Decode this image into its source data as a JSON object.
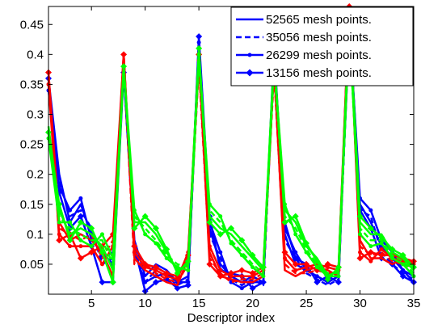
{
  "chart_data": {
    "type": "line",
    "title": "",
    "xlabel": "Descriptor index",
    "ylabel": "",
    "xlim": [
      1,
      35
    ],
    "ylim": [
      0,
      0.48
    ],
    "grid": false,
    "legend_position": "top-right",
    "x_ticks": [
      5,
      10,
      15,
      20,
      25,
      30,
      35
    ],
    "x_tick_labels": [
      "5",
      "10",
      "15",
      "20",
      "25",
      "30",
      "35"
    ],
    "y_ticks": [
      0.05,
      0.1,
      0.15,
      0.2,
      0.25,
      0.3,
      0.35,
      0.4,
      0.45
    ],
    "y_tick_labels": [
      "0.05",
      "0.1",
      "0.15",
      "0.2",
      "0.25",
      "0.3",
      "0.35",
      "0.4",
      "0.45"
    ],
    "colors": {
      "blue": "#0000ff",
      "red": "#ff0000",
      "green": "#00ff00"
    },
    "legend": [
      {
        "label": "52565 mesh points.",
        "style": "solid"
      },
      {
        "label": "35056 mesh points.",
        "style": "dashed"
      },
      {
        "label": "26299 mesh points.",
        "style": "dot-marker"
      },
      {
        "label": "13156 mesh points.",
        "style": "diamond-marker"
      }
    ],
    "x": [
      1,
      2,
      3,
      4,
      5,
      6,
      7,
      8,
      9,
      10,
      11,
      12,
      13,
      14,
      15,
      16,
      17,
      18,
      19,
      20,
      21,
      22,
      23,
      24,
      25,
      26,
      27,
      28,
      29,
      30,
      31,
      32,
      33,
      34,
      35
    ],
    "series": [
      {
        "color": "blue",
        "style": "solid",
        "values": [
          0.36,
          0.2,
          0.12,
          0.15,
          0.1,
          0.06,
          0.07,
          0.38,
          0.09,
          0.03,
          0.05,
          0.04,
          0.02,
          0.03,
          0.42,
          0.11,
          0.05,
          0.03,
          0.02,
          0.03,
          0.02,
          0.4,
          0.1,
          0.05,
          0.04,
          0.03,
          0.02,
          0.03,
          0.45,
          0.15,
          0.12,
          0.08,
          0.06,
          0.04,
          0.03
        ]
      },
      {
        "color": "blue",
        "style": "dashed",
        "values": [
          0.35,
          0.19,
          0.13,
          0.14,
          0.11,
          0.05,
          0.06,
          0.37,
          0.08,
          0.02,
          0.04,
          0.03,
          0.015,
          0.025,
          0.41,
          0.1,
          0.06,
          0.025,
          0.015,
          0.025,
          0.015,
          0.39,
          0.09,
          0.06,
          0.035,
          0.025,
          0.015,
          0.025,
          0.44,
          0.14,
          0.13,
          0.07,
          0.05,
          0.035,
          0.025
        ]
      },
      {
        "color": "blue",
        "style": "dot",
        "values": [
          0.34,
          0.18,
          0.14,
          0.16,
          0.09,
          0.07,
          0.05,
          0.38,
          0.07,
          0.02,
          0.03,
          0.035,
          0.02,
          0.02,
          0.42,
          0.12,
          0.07,
          0.02,
          0.01,
          0.02,
          0.02,
          0.41,
          0.11,
          0.07,
          0.04,
          0.03,
          0.02,
          0.03,
          0.45,
          0.16,
          0.14,
          0.09,
          0.07,
          0.04,
          0.02
        ]
      },
      {
        "color": "blue",
        "style": "diamond",
        "values": [
          0.36,
          0.17,
          0.11,
          0.13,
          0.08,
          0.02,
          0.02,
          0.37,
          0.08,
          0.005,
          0.02,
          0.025,
          0.01,
          0.015,
          0.43,
          0.13,
          0.04,
          0.035,
          0.03,
          0.01,
          0.02,
          0.4,
          0.12,
          0.06,
          0.05,
          0.02,
          0.03,
          0.02,
          0.46,
          0.14,
          0.11,
          0.06,
          0.05,
          0.03,
          0.02
        ]
      },
      {
        "color": "red",
        "style": "solid",
        "values": [
          0.37,
          0.12,
          0.09,
          0.1,
          0.09,
          0.07,
          0.03,
          0.4,
          0.06,
          0.04,
          0.03,
          0.02,
          0.015,
          0.06,
          0.39,
          0.07,
          0.03,
          0.025,
          0.02,
          0.02,
          0.03,
          0.38,
          0.04,
          0.03,
          0.04,
          0.045,
          0.04,
          0.03,
          0.48,
          0.09,
          0.06,
          0.06,
          0.05,
          0.06,
          0.05
        ]
      },
      {
        "color": "red",
        "style": "dashed",
        "values": [
          0.36,
          0.11,
          0.1,
          0.09,
          0.1,
          0.06,
          0.09,
          0.39,
          0.05,
          0.05,
          0.035,
          0.025,
          0.02,
          0.05,
          0.38,
          0.06,
          0.035,
          0.02,
          0.025,
          0.025,
          0.035,
          0.37,
          0.05,
          0.035,
          0.035,
          0.04,
          0.035,
          0.035,
          0.47,
          0.08,
          0.065,
          0.07,
          0.055,
          0.05,
          0.045
        ]
      },
      {
        "color": "red",
        "style": "dot",
        "values": [
          0.35,
          0.1,
          0.08,
          0.08,
          0.08,
          0.05,
          0.08,
          0.4,
          0.07,
          0.045,
          0.04,
          0.03,
          0.025,
          0.07,
          0.39,
          0.08,
          0.04,
          0.03,
          0.03,
          0.03,
          0.04,
          0.38,
          0.06,
          0.04,
          0.045,
          0.05,
          0.045,
          0.04,
          0.48,
          0.07,
          0.055,
          0.075,
          0.06,
          0.055,
          0.05
        ]
      },
      {
        "color": "red",
        "style": "diamond",
        "values": [
          0.37,
          0.09,
          0.1,
          0.06,
          0.07,
          0.08,
          0.1,
          0.4,
          0.08,
          0.05,
          0.045,
          0.035,
          0.03,
          0.065,
          0.4,
          0.05,
          0.03,
          0.035,
          0.04,
          0.035,
          0.045,
          0.39,
          0.07,
          0.05,
          0.05,
          0.04,
          0.05,
          0.045,
          0.48,
          0.06,
          0.07,
          0.065,
          0.065,
          0.06,
          0.055
        ]
      },
      {
        "color": "green",
        "style": "solid",
        "values": [
          0.28,
          0.14,
          0.1,
          0.11,
          0.1,
          0.08,
          0.04,
          0.38,
          0.12,
          0.12,
          0.1,
          0.07,
          0.04,
          0.05,
          0.4,
          0.13,
          0.11,
          0.1,
          0.08,
          0.06,
          0.04,
          0.39,
          0.14,
          0.12,
          0.08,
          0.06,
          0.03,
          0.04,
          0.45,
          0.12,
          0.1,
          0.1,
          0.07,
          0.06,
          0.04
        ]
      },
      {
        "color": "green",
        "style": "dashed",
        "values": [
          0.27,
          0.13,
          0.11,
          0.1,
          0.09,
          0.09,
          0.05,
          0.37,
          0.13,
          0.11,
          0.09,
          0.065,
          0.05,
          0.045,
          0.39,
          0.14,
          0.12,
          0.09,
          0.07,
          0.05,
          0.035,
          0.38,
          0.13,
          0.11,
          0.075,
          0.05,
          0.035,
          0.035,
          0.44,
          0.11,
          0.09,
          0.09,
          0.065,
          0.055,
          0.035
        ]
      },
      {
        "color": "green",
        "style": "dot",
        "values": [
          0.26,
          0.12,
          0.12,
          0.09,
          0.08,
          0.1,
          0.06,
          0.38,
          0.14,
          0.1,
          0.085,
          0.06,
          0.045,
          0.04,
          0.4,
          0.15,
          0.13,
          0.085,
          0.065,
          0.045,
          0.03,
          0.39,
          0.15,
          0.1,
          0.07,
          0.045,
          0.03,
          0.03,
          0.45,
          0.1,
          0.08,
          0.085,
          0.06,
          0.05,
          0.03
        ]
      },
      {
        "color": "green",
        "style": "diamond",
        "values": [
          0.27,
          0.15,
          0.09,
          0.12,
          0.11,
          0.07,
          0.02,
          0.38,
          0.11,
          0.13,
          0.11,
          0.075,
          0.035,
          0.055,
          0.41,
          0.12,
          0.1,
          0.11,
          0.09,
          0.065,
          0.045,
          0.4,
          0.12,
          0.13,
          0.085,
          0.055,
          0.025,
          0.045,
          0.46,
          0.13,
          0.11,
          0.095,
          0.075,
          0.065,
          0.045
        ]
      }
    ]
  }
}
